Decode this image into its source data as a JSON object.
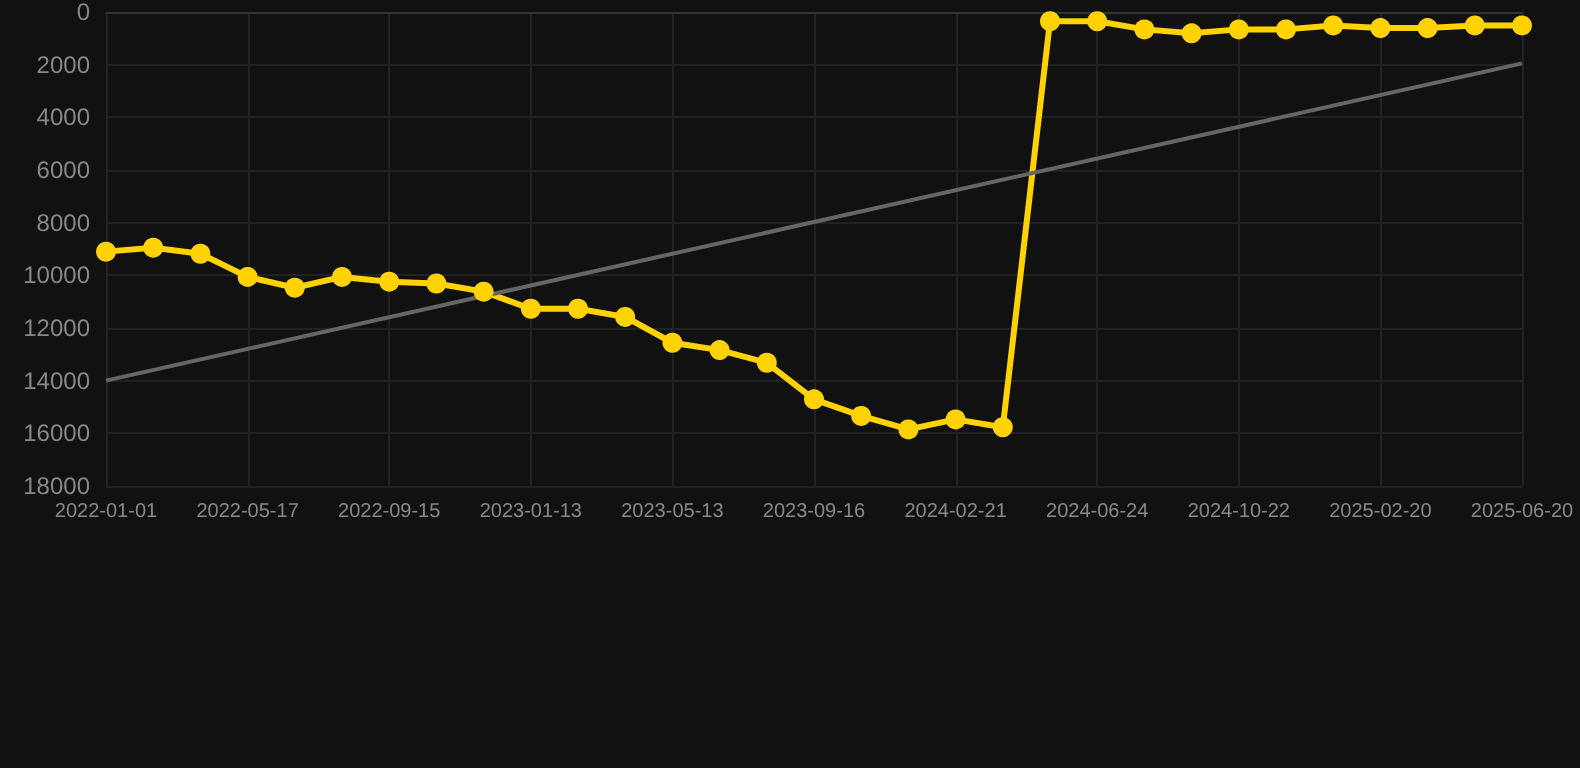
{
  "chart_data": {
    "type": "line",
    "categories": [
      "2022-01-01",
      null,
      null,
      "2022-05-17",
      null,
      null,
      "2022-09-15",
      null,
      null,
      "2023-01-13",
      null,
      null,
      "2023-05-13",
      null,
      null,
      "2023-09-16",
      null,
      null,
      "2024-02-21",
      null,
      null,
      "2024-06-24",
      null,
      null,
      "2024-10-22",
      null,
      null,
      "2025-02-20",
      null,
      null,
      "2025-06-20"
    ],
    "series": [
      {
        "color": "#ffd200",
        "marker": "circle",
        "values": [
          9100,
          8950,
          9180,
          10060,
          10470,
          10060,
          10240,
          10310,
          10620,
          11270,
          11270,
          11580,
          12560,
          12840,
          13320,
          14710,
          15340,
          15850,
          15470,
          15770,
          350,
          350,
          660,
          810,
          660,
          660,
          510,
          610,
          610,
          510,
          510
        ]
      },
      {
        "color": "#666666",
        "marker": "none",
        "values": [
          14000,
          null,
          null,
          null,
          null,
          null,
          null,
          null,
          null,
          null,
          null,
          null,
          null,
          null,
          null,
          null,
          null,
          null,
          null,
          null,
          null,
          null,
          null,
          null,
          null,
          null,
          null,
          null,
          null,
          null,
          1950
        ]
      }
    ],
    "ylim": [
      18000,
      0
    ],
    "yticks": [
      0,
      2000,
      4000,
      6000,
      8000,
      10000,
      12000,
      14000,
      16000,
      18000
    ],
    "grid": true
  }
}
